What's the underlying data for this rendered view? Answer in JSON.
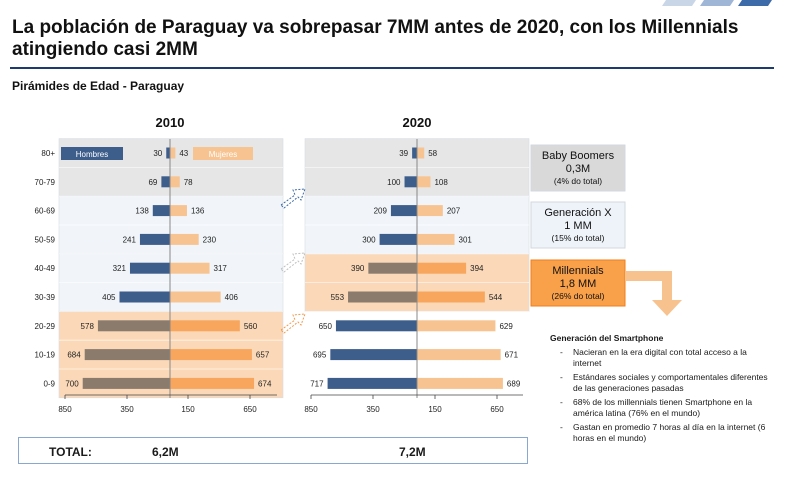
{
  "header": {
    "title": "La población de Paraguay va sobrepasar 7MM antes de 2020, con los Millennials atingiendo casi 2MM",
    "subtitle": "Pirámides de Edad - Paraguay"
  },
  "colors": {
    "hombres": "#3d5d8a",
    "mujeres": "#f7c391",
    "hombres_millennial": "#8a7b6d",
    "mujeres_millennial": "#f8a65d",
    "band_boomers": "#e6e6e6",
    "band_genx": "#f1f5fa",
    "band_millennial": "#fbd9b8",
    "box_boomers": "#d9d9d9",
    "box_genx": "#eef3f9",
    "box_millennial": "#f8a04a",
    "arrow": "#f8c28e"
  },
  "chart_data": [
    {
      "type": "bar",
      "orientation": "horizontal-pyramid",
      "title": "2010",
      "categories": [
        "80+",
        "70-79",
        "60-69",
        "50-59",
        "40-49",
        "30-39",
        "20-29",
        "10-19",
        "0-9"
      ],
      "series": [
        {
          "name": "Hombres",
          "values": [
            30,
            69,
            138,
            241,
            321,
            405,
            578,
            684,
            700
          ]
        },
        {
          "name": "Mujeres",
          "values": [
            43,
            78,
            136,
            230,
            317,
            406,
            560,
            657,
            674
          ]
        }
      ],
      "xticks": [
        "850",
        "350",
        "150",
        "650"
      ],
      "xlim": [
        -850,
        850
      ],
      "total_label": "TOTAL:",
      "total": "6,2M"
    },
    {
      "type": "bar",
      "orientation": "horizontal-pyramid",
      "title": "2020",
      "categories": [
        "80+",
        "70-79",
        "60-69",
        "50-59",
        "40-49",
        "30-39",
        "20-29",
        "10-19",
        "0-9"
      ],
      "series": [
        {
          "name": "Hombres",
          "values": [
            39,
            100,
            209,
            300,
            390,
            553,
            650,
            695,
            717
          ]
        },
        {
          "name": "Mujeres",
          "values": [
            58,
            108,
            207,
            301,
            394,
            544,
            629,
            671,
            689
          ]
        }
      ],
      "xticks": [
        "850",
        "350",
        "150",
        "650"
      ],
      "xlim": [
        -850,
        850
      ],
      "total": "7,2M"
    }
  ],
  "generations": [
    {
      "name": "Baby Boomers",
      "value": "0,3M",
      "share": "(4% do total)"
    },
    {
      "name": "Generación X",
      "value": "1 MM",
      "share": "(15% do total)"
    },
    {
      "name": "Millennials",
      "value": "1,8 MM",
      "share": "(26% do total)"
    }
  ],
  "smartphone": {
    "title": "Generación del Smartphone",
    "items": [
      "Nacieran en la era digital con total acceso a la internet",
      "Estándares sociales y comportamentales diferentes de las generaciones pasadas",
      "68% de los millennials tienen Smartphone en la américa latina (76% en el mundo)",
      "Gastan en promedio 7 horas al día en la internet (6 horas en el mundo)"
    ]
  }
}
